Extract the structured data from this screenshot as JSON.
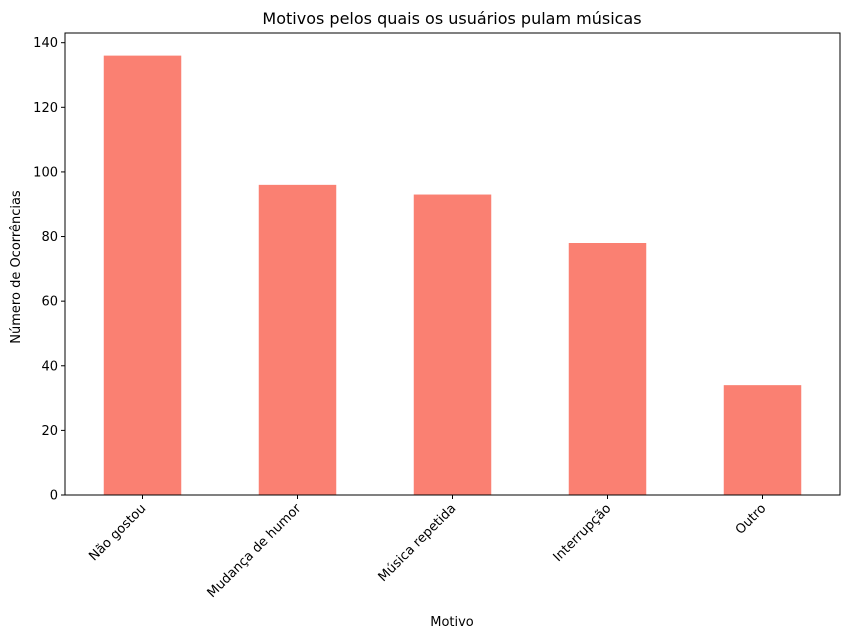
{
  "chart_data": {
    "type": "bar",
    "title": "Motivos pelos quais os usuários pulam músicas",
    "xlabel": "Motivo",
    "ylabel": "Número de Ocorrências",
    "categories": [
      "Não gostou",
      "Mudança de humor",
      "Música repetida",
      "Interrupção",
      "Outro"
    ],
    "values": [
      136,
      96,
      93,
      78,
      34
    ],
    "ylim": [
      0,
      143
    ],
    "yticks": [
      0,
      20,
      40,
      60,
      80,
      100,
      120,
      140
    ],
    "bar_color": "#FA8072",
    "grid": false,
    "legend": "none",
    "xtick_rotation": 45
  }
}
